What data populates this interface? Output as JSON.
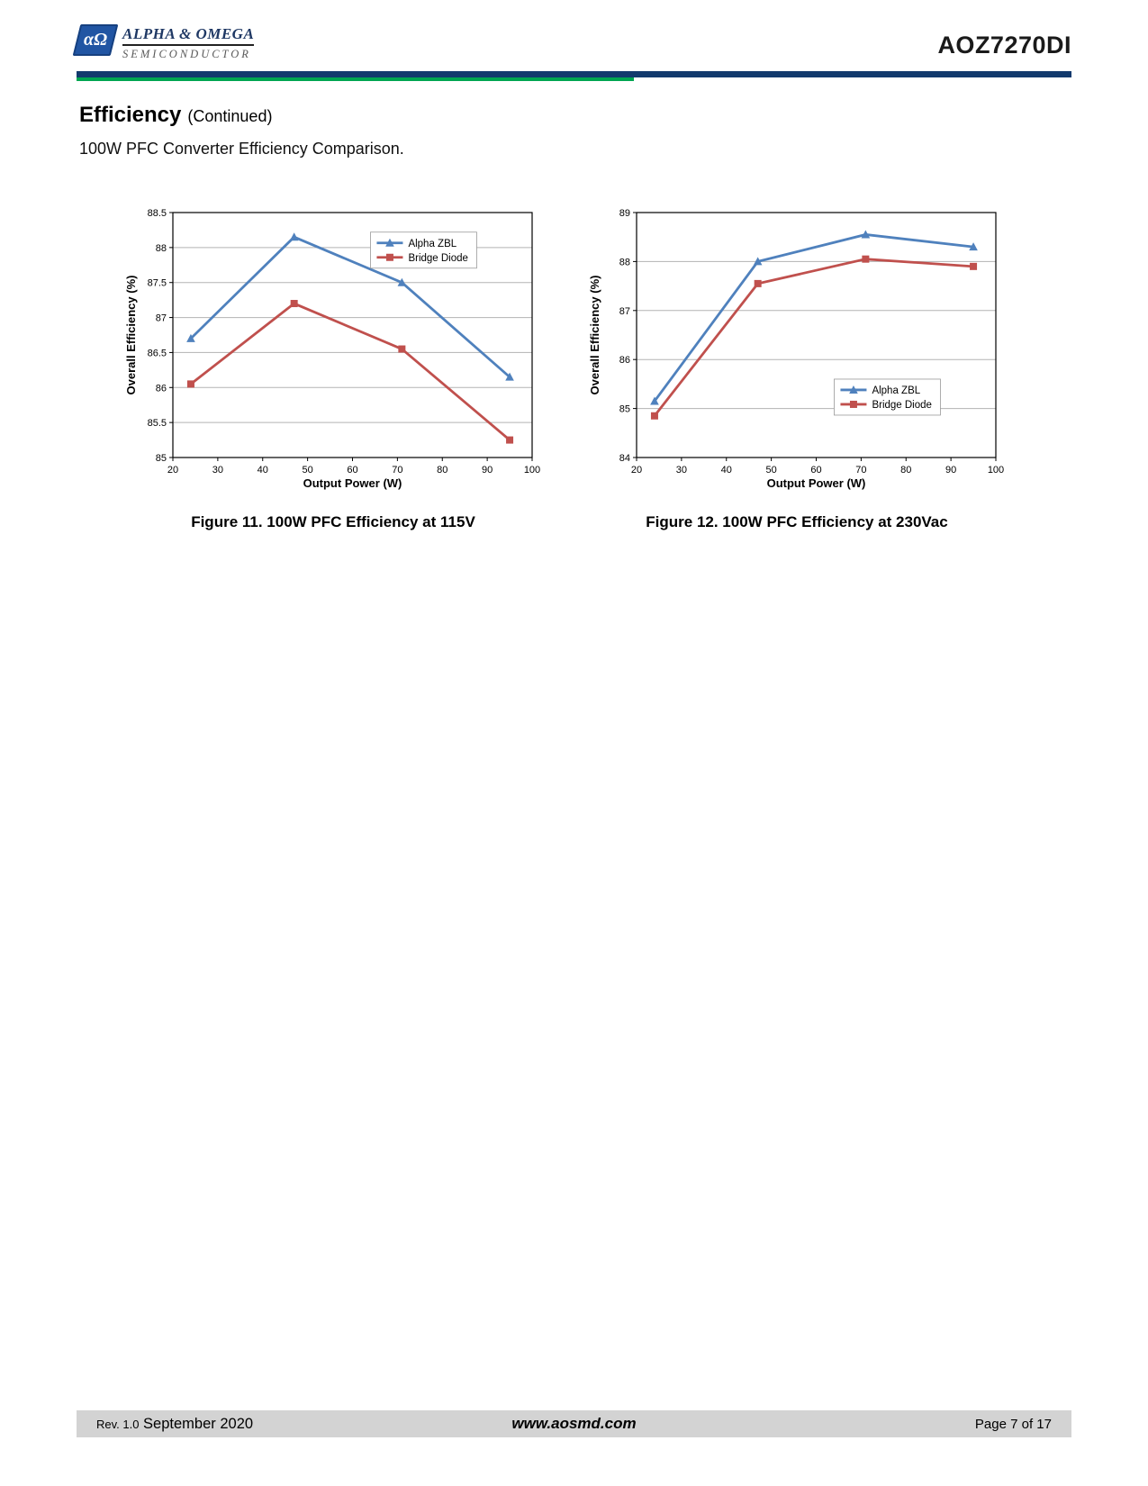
{
  "header": {
    "logo_mark": "αΩ",
    "logo_line1": "ALPHA & OMEGA",
    "logo_line2": "SEMICONDUCTOR",
    "part_number": "AOZ7270DI"
  },
  "section": {
    "title": "Efficiency",
    "subtitle": "(Continued)",
    "description": "100W PFC Converter Efficiency Comparison."
  },
  "colors": {
    "header_bar_blue": "#123a6d",
    "header_bar_green": "#00a651",
    "alpha_zbl_blue": "#4f81bd",
    "bridge_diode_red": "#c0504d",
    "footer_bar_gray": "#d3d3d3"
  },
  "chart_data": [
    {
      "type": "line",
      "title": "Figure 11. 100W PFC Efficiency at 115V",
      "xlabel": "Output Power (W)",
      "ylabel": "Overall Efficiency (%)",
      "xlim": [
        20,
        100
      ],
      "ylim": [
        85,
        88.5
      ],
      "xticks": [
        20,
        30,
        40,
        50,
        60,
        70,
        80,
        90,
        100
      ],
      "yticks": [
        85,
        85.5,
        86,
        86.5,
        87,
        87.5,
        88,
        88.5
      ],
      "x": [
        24,
        47,
        71,
        95
      ],
      "series": [
        {
          "name": "Alpha ZBL",
          "color": "#4f81bd",
          "marker": "triangle",
          "values": [
            86.7,
            88.15,
            87.5,
            86.15
          ]
        },
        {
          "name": "Bridge Diode",
          "color": "#c0504d",
          "marker": "square",
          "values": [
            86.05,
            87.2,
            86.55,
            85.25
          ]
        }
      ],
      "grid": "horizontal",
      "legend_position": "inside-top-right"
    },
    {
      "type": "line",
      "title": "Figure 12. 100W PFC Efficiency at 230Vac",
      "xlabel": "Output Power (W)",
      "ylabel": "Overall Efficiency (%)",
      "xlim": [
        20,
        100
      ],
      "ylim": [
        84,
        89
      ],
      "xticks": [
        20,
        30,
        40,
        50,
        60,
        70,
        80,
        90,
        100
      ],
      "yticks": [
        84,
        85,
        86,
        87,
        88,
        89
      ],
      "x": [
        24,
        47,
        71,
        95
      ],
      "series": [
        {
          "name": "Alpha ZBL",
          "color": "#4f81bd",
          "marker": "triangle",
          "values": [
            85.15,
            88.0,
            88.55,
            88.3
          ]
        },
        {
          "name": "Bridge Diode",
          "color": "#c0504d",
          "marker": "square",
          "values": [
            84.85,
            87.55,
            88.05,
            87.9
          ]
        }
      ],
      "grid": "horizontal",
      "legend_position": "inside-middle-right"
    }
  ],
  "footer": {
    "rev": "Rev. 1.0",
    "date": "September 2020",
    "url": "www.aosmd.com",
    "page": "Page 7 of 17"
  }
}
